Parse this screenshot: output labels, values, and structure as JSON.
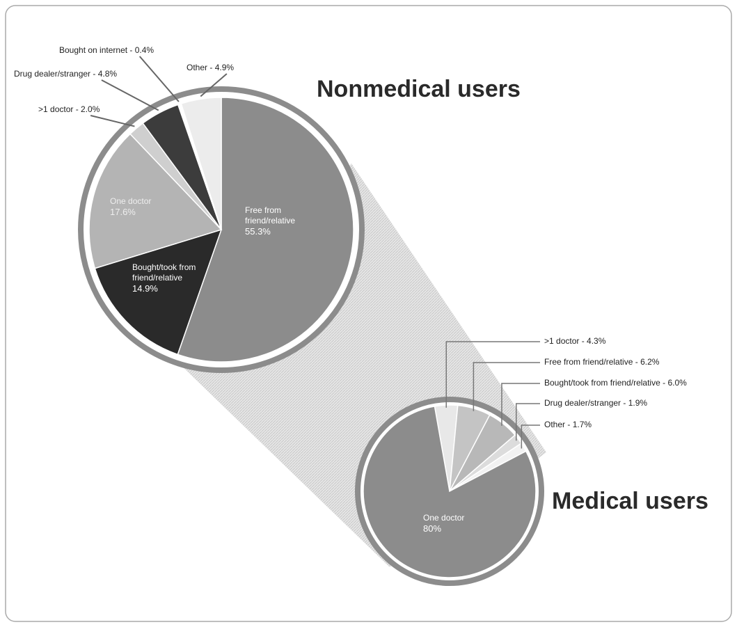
{
  "chart_data": [
    {
      "type": "pie",
      "title": "Nonmedical users",
      "categories": [
        "Free from friend/relative",
        "Bought/took from friend/relative",
        "One doctor",
        ">1 doctor",
        "Drug dealer/stranger",
        "Bought on internet",
        "Other"
      ],
      "values": [
        55.3,
        14.9,
        17.6,
        2.0,
        4.8,
        0.4,
        4.9
      ],
      "value_labels": [
        "55.3%",
        "14.9%",
        "17.6%",
        "2.0%",
        "4.8%",
        "0.4%",
        "4.9%"
      ],
      "colors": [
        "#8c8c8c",
        "#2a2a2a",
        "#b4b4b4",
        "#cfcfcf",
        "#3c3c3c",
        "#ffffff",
        "#ececec"
      ],
      "label_separator": " - "
    },
    {
      "type": "pie",
      "title": "Medical users",
      "categories": [
        ">1 doctor",
        "Free from friend/relative",
        "Bought/took from friend/relative",
        "Drug dealer/stranger",
        "Other",
        "One doctor"
      ],
      "values": [
        4.3,
        6.2,
        6.0,
        1.9,
        1.7,
        80
      ],
      "value_labels": [
        "4.3%",
        "6.2%",
        "6.0%",
        "1.9%",
        "1.7%",
        "80%"
      ],
      "colors": [
        "#e8e8e8",
        "#c4c4c4",
        "#b8b8b8",
        "#dcdcdc",
        "#f2f2f2",
        "#8c8c8c"
      ],
      "label_separator": " - "
    }
  ]
}
